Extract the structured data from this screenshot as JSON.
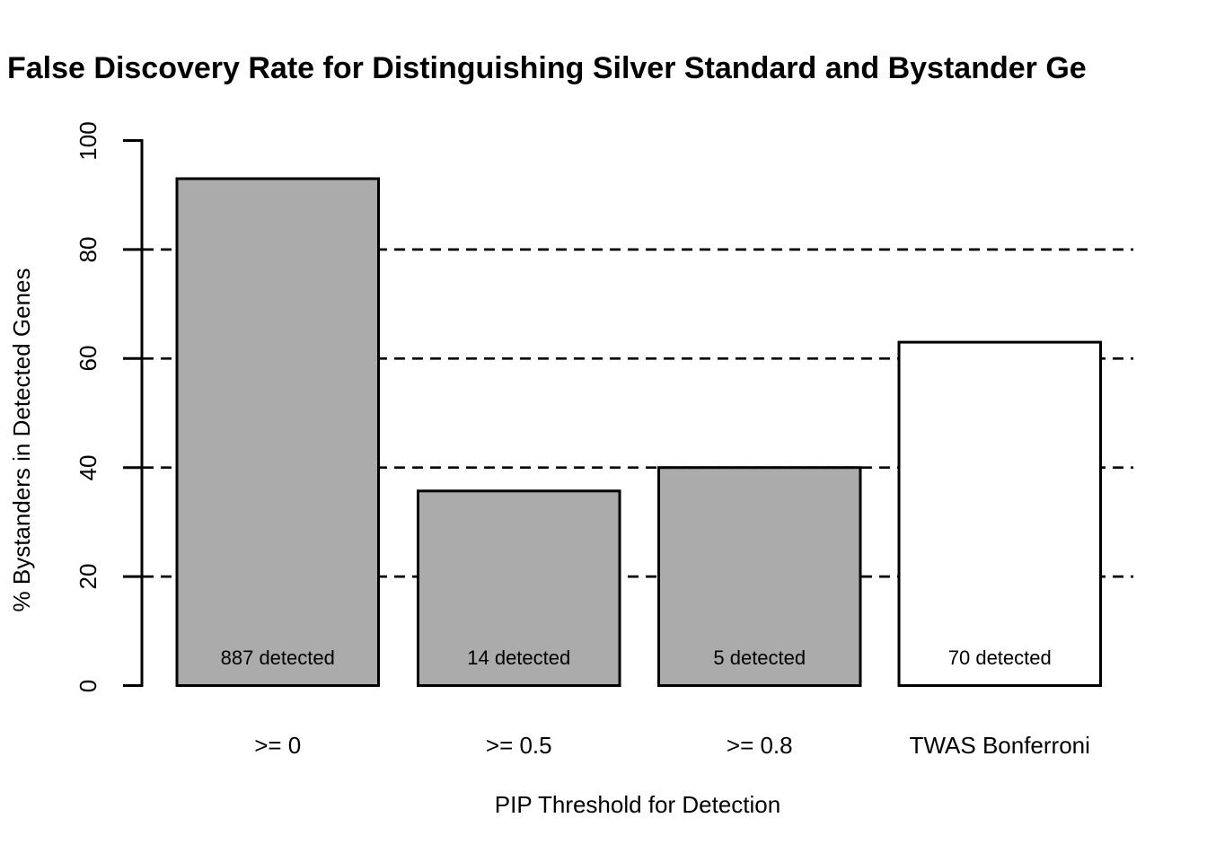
{
  "chart_data": {
    "type": "bar",
    "title": "False Discovery Rate for Distinguishing Silver Standard and Bystander Ge",
    "xlabel": "PIP Threshold for Detection",
    "ylabel": "% Bystanders in Detected Genes",
    "ylim": [
      0,
      100
    ],
    "yticks": [
      0,
      20,
      40,
      60,
      80,
      100
    ],
    "gridlines": {
      "values": [
        20,
        40,
        60,
        80
      ],
      "style": "dashed"
    },
    "legend_position": "none",
    "categories": [
      ">= 0",
      ">= 0.5",
      ">= 0.8",
      "TWAS Bonferroni"
    ],
    "values": [
      93,
      35.7,
      40,
      63
    ],
    "bar_labels": [
      "887 detected",
      "14 detected",
      "5 detected",
      "70 detected"
    ],
    "bar_fills": [
      "#ABABAB",
      "#ABABAB",
      "#ABABAB",
      "#FFFFFF"
    ],
    "colors": {
      "stroke": "#000000",
      "bar_gray": "#ABABAB",
      "bar_white": "#FFFFFF",
      "background": "#FFFFFF"
    }
  }
}
